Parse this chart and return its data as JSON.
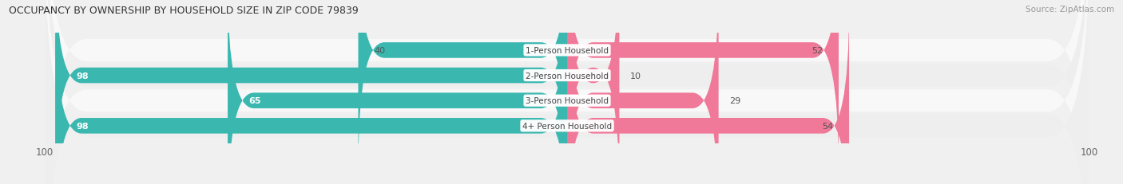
{
  "title": "OCCUPANCY BY OWNERSHIP BY HOUSEHOLD SIZE IN ZIP CODE 79839",
  "source": "Source: ZipAtlas.com",
  "categories": [
    "1-Person Household",
    "2-Person Household",
    "3-Person Household",
    "4+ Person Household"
  ],
  "owner_values": [
    40,
    98,
    65,
    98
  ],
  "renter_values": [
    52,
    10,
    29,
    54
  ],
  "owner_color": "#3ab8b0",
  "renter_color": "#f07898",
  "bg_color": "#f0f0f0",
  "row_colors": [
    "#f8f8f8",
    "#eeeeee",
    "#f8f8f8",
    "#eeeeee"
  ],
  "axis_min": -100,
  "axis_max": 100
}
